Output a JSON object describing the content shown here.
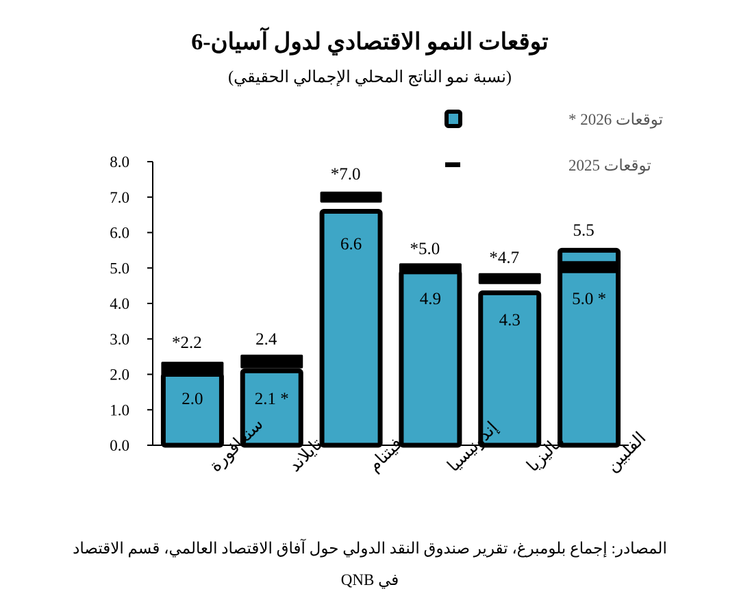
{
  "chart_data": {
    "type": "bar",
    "title": "توقعات النمو الاقتصادي لدول آسيان-6",
    "subtitle": "(نسبة نمو الناتج المحلي الإجمالي الحقيقي)",
    "categories": [
      "سنغافورة",
      "تايلاند",
      "فيتنام",
      "إندونيسيا",
      "ماليزيا",
      "الفلبين"
    ],
    "series": [
      {
        "name": "توقعات 2025",
        "values": [
          2.0,
          2.1,
          6.6,
          4.9,
          4.3,
          5.0
        ],
        "labels": [
          "2.0",
          "2.1 *",
          "6.6",
          "4.9",
          "4.3",
          "5.0 *"
        ]
      },
      {
        "name": "توقعات 2026 *",
        "values": [
          2.2,
          2.4,
          7.0,
          5.0,
          4.7,
          5.5
        ],
        "labels": [
          "*2.2",
          "2.4",
          "*7.0",
          "*5.0",
          "*4.7",
          "5.5"
        ]
      }
    ],
    "yticks": [
      "0.0",
      "1.0",
      "2.0",
      "3.0",
      "4.0",
      "5.0",
      "6.0",
      "7.0",
      "8.0"
    ],
    "ylim": [
      0,
      8
    ],
    "grid": false,
    "legend_position": "top-right",
    "colors": {
      "bar_fill": "#3ea6c6",
      "outline": "#000000"
    }
  },
  "source_line1": "المصادر: إجماع بلومبرغ، تقرير صندوق النقد الدولي حول آفاق الاقتصاد العالمي، قسم الاقتصاد",
  "source_line2": "في QNB"
}
